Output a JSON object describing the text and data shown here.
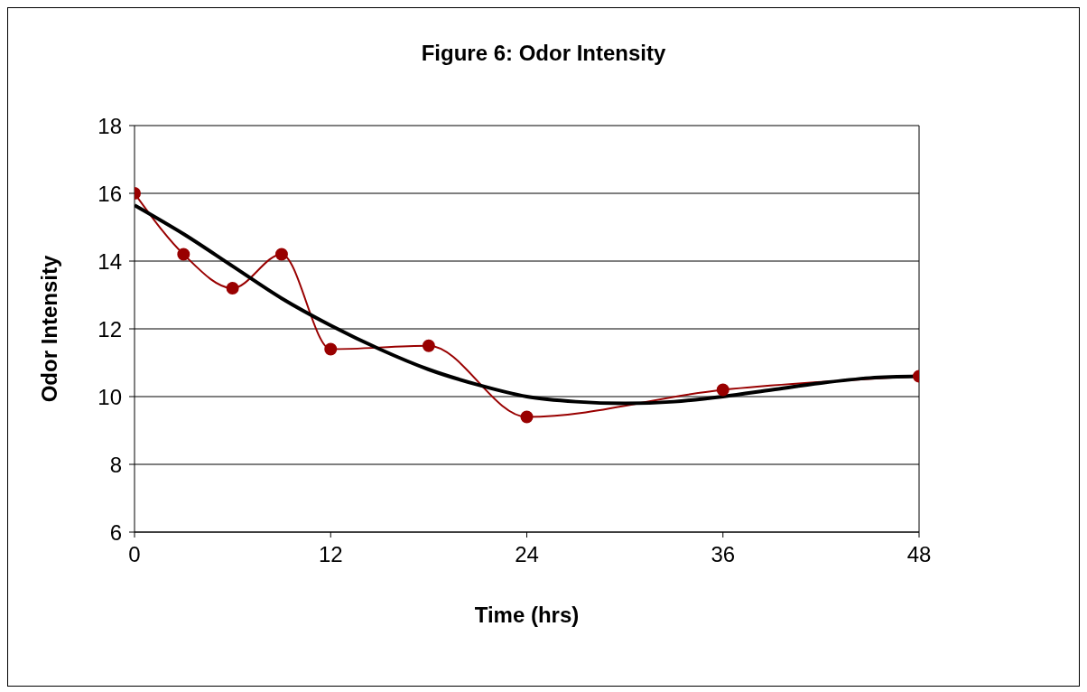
{
  "chart_data": {
    "type": "line",
    "title": "Figure 6: Odor Intensity",
    "xlabel": "Time (hrs)",
    "ylabel": "Odor Intensity",
    "xlim": [
      0,
      48
    ],
    "xticks": [
      0,
      12,
      24,
      36,
      48
    ],
    "ylim": [
      6,
      18
    ],
    "yticks": [
      6,
      8,
      10,
      12,
      14,
      16,
      18
    ],
    "grid": "y",
    "series": [
      {
        "color": "#990000",
        "marker": "circle",
        "x": [
          0,
          3,
          6,
          9,
          12,
          18,
          24,
          36,
          48
        ],
        "values": [
          16,
          14.2,
          13.2,
          14.2,
          11.4,
          11.5,
          9.4,
          10.2,
          10.6
        ]
      },
      {
        "color": "#000000",
        "marker": "none",
        "x": [
          0,
          3,
          6,
          9,
          12,
          15,
          18,
          21,
          24,
          27,
          30,
          33,
          36,
          39,
          42,
          45,
          48
        ],
        "values": [
          15.65,
          14.8,
          13.85,
          12.9,
          12.1,
          11.4,
          10.8,
          10.35,
          10.0,
          9.85,
          9.8,
          9.85,
          10.0,
          10.2,
          10.4,
          10.55,
          10.6
        ]
      }
    ]
  }
}
